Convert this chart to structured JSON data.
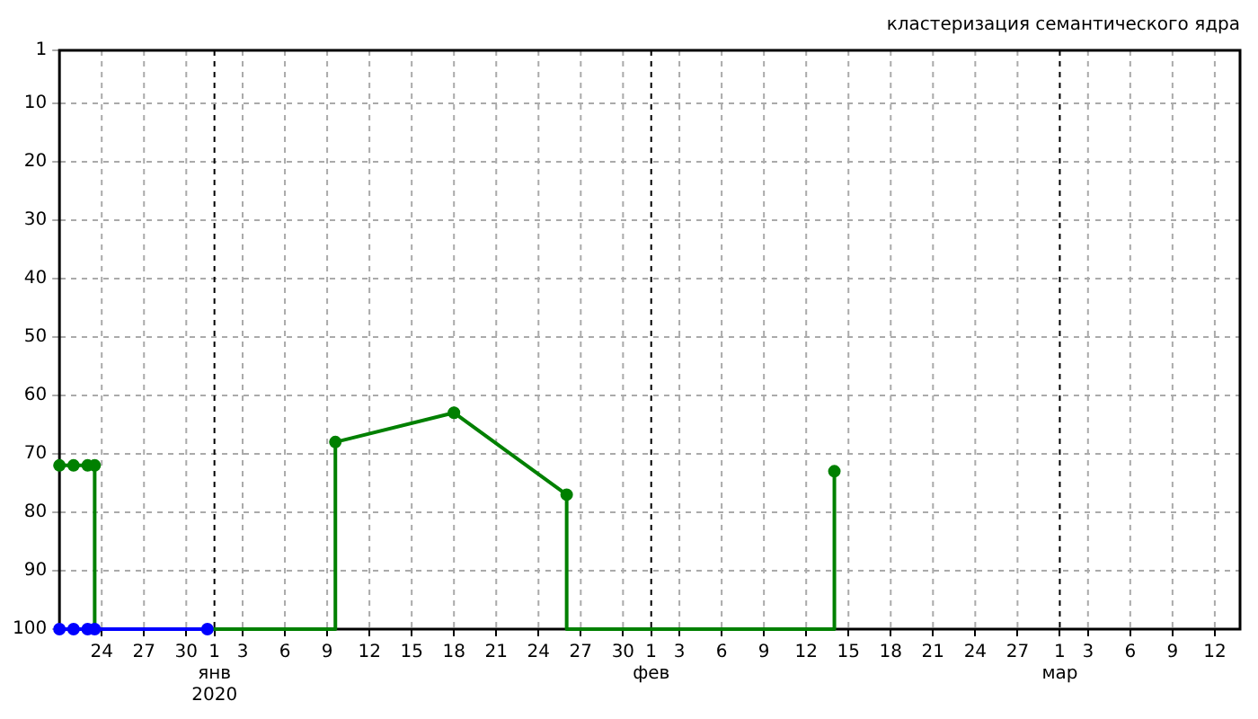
{
  "chart_data": {
    "type": "line",
    "title": "кластеризация семантического ядра",
    "series": [
      {
        "color": "#0000ff",
        "x": [
          "2019-12-21",
          "2019-12-22",
          "2019-12-23",
          "2019-12-23T12:00",
          "2019-12-31T12:00"
        ],
        "values": [
          100,
          100,
          100,
          100,
          100
        ]
      },
      {
        "color": "#008000",
        "x": [
          "2019-12-21",
          "2019-12-22",
          "2019-12-23",
          "2019-12-23T12:00",
          "2019-12-23T12:00",
          "2020-01-09T14:00",
          "2020-01-09T14:00",
          "2020-01-18",
          "2020-01-26",
          "2020-01-26",
          "2020-02-14",
          "2020-02-14",
          "2020-02-14"
        ],
        "values": [
          72,
          72,
          72,
          72,
          100,
          100,
          68,
          63,
          77,
          100,
          100,
          73,
          100
        ]
      }
    ],
    "xlim": [
      "2019-12-21",
      "2020-03-13T19:00"
    ],
    "xticks": [
      {
        "value": "2019-12-24",
        "label": "24"
      },
      {
        "value": "2019-12-27",
        "label": "27"
      },
      {
        "value": "2019-12-30",
        "label": "30"
      },
      {
        "value": "2020-01-01",
        "label": "1\nянв\n2020"
      },
      {
        "value": "2020-01-03",
        "label": "3"
      },
      {
        "value": "2020-01-06",
        "label": "6"
      },
      {
        "value": "2020-01-09",
        "label": "9"
      },
      {
        "value": "2020-01-12",
        "label": "12"
      },
      {
        "value": "2020-01-15",
        "label": "15"
      },
      {
        "value": "2020-01-18",
        "label": "18"
      },
      {
        "value": "2020-01-21",
        "label": "21"
      },
      {
        "value": "2020-01-24",
        "label": "24"
      },
      {
        "value": "2020-01-27",
        "label": "27"
      },
      {
        "value": "2020-01-30",
        "label": "30"
      },
      {
        "value": "2020-02-01",
        "label": "1\nфев"
      },
      {
        "value": "2020-02-03",
        "label": "3"
      },
      {
        "value": "2020-02-06",
        "label": "6"
      },
      {
        "value": "2020-02-09",
        "label": "9"
      },
      {
        "value": "2020-02-12",
        "label": "12"
      },
      {
        "value": "2020-02-15",
        "label": "15"
      },
      {
        "value": "2020-02-18",
        "label": "18"
      },
      {
        "value": "2020-02-21",
        "label": "21"
      },
      {
        "value": "2020-02-24",
        "label": "24"
      },
      {
        "value": "2020-02-27",
        "label": "27"
      },
      {
        "value": "2020-03-01",
        "label": "1\nмар"
      },
      {
        "value": "2020-03-03",
        "label": "3"
      },
      {
        "value": "2020-03-06",
        "label": "6"
      },
      {
        "value": "2020-03-09",
        "label": "9"
      },
      {
        "value": "2020-03-12",
        "label": "12"
      }
    ],
    "ylim": [
      100,
      1
    ],
    "yticks": [
      1,
      10,
      20,
      30,
      40,
      50,
      60,
      70,
      80,
      90,
      100
    ],
    "grid": true,
    "legend": false,
    "marker": "circle",
    "line_style": "solid"
  }
}
